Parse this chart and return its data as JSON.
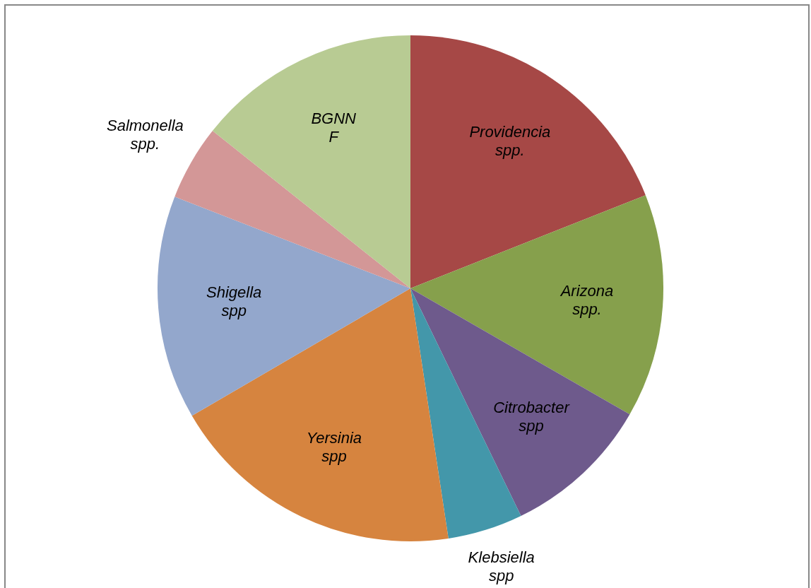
{
  "chart_data": {
    "type": "pie",
    "categories": [
      "Providencia spp.",
      "Arizona spp.",
      "Citrobacter spp",
      "Klebsiella spp",
      "Yersinia spp",
      "Shigella spp",
      "Salmonella spp.",
      "BGNN F"
    ],
    "values": [
      19,
      14.3,
      9.5,
      4.8,
      19,
      14.3,
      4.8,
      14.3
    ],
    "colors": [
      "#a64846",
      "#86a04c",
      "#6e5a8c",
      "#4397aa",
      "#d6843f",
      "#93a7cc",
      "#d39797",
      "#b8cb93"
    ],
    "legend": false
  }
}
